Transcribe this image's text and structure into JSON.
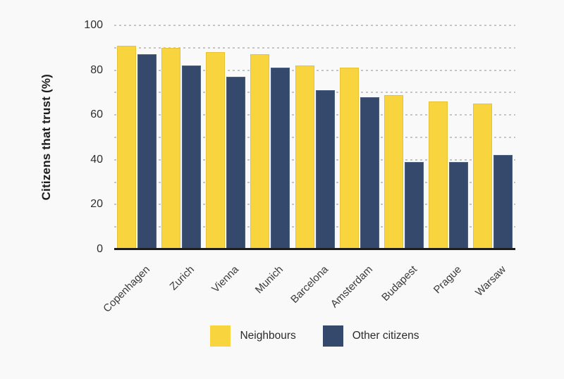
{
  "chart_data": {
    "type": "bar",
    "title": "",
    "xlabel": "",
    "ylabel": "Citizens that trust (%)",
    "categories": [
      "Copenhagen",
      "Zurich",
      "Vienna",
      "Munich",
      "Barcelona",
      "Amsterdam",
      "Budapest",
      "Prague",
      "Warsaw"
    ],
    "series": [
      {
        "name": "Neighbours",
        "color": "#f8d43e",
        "border_color": "#e6c235",
        "values": [
          91,
          90,
          88,
          87,
          82,
          81,
          69,
          66,
          65
        ]
      },
      {
        "name": "Other citizens",
        "color": "#34496b",
        "border_color": "#4d5f80",
        "values": [
          87,
          82,
          77,
          81,
          71,
          68,
          39,
          39,
          42
        ]
      }
    ],
    "ylim": [
      0,
      100
    ],
    "yticks": [
      0,
      20,
      40,
      60,
      80,
      100
    ],
    "gridline_step": 10,
    "grid": "horizontal-dashed",
    "legend_position": "bottom-center"
  },
  "colors": {
    "background": "#f9f9f9",
    "gridline": "#c5c5c5",
    "axis_line": "#1d1d1d",
    "tick_text": "#2e2e2e",
    "category_text": "#3a3a3a",
    "axis_title_text": "#1c1c1c",
    "legend_text": "#2b2b2b"
  }
}
